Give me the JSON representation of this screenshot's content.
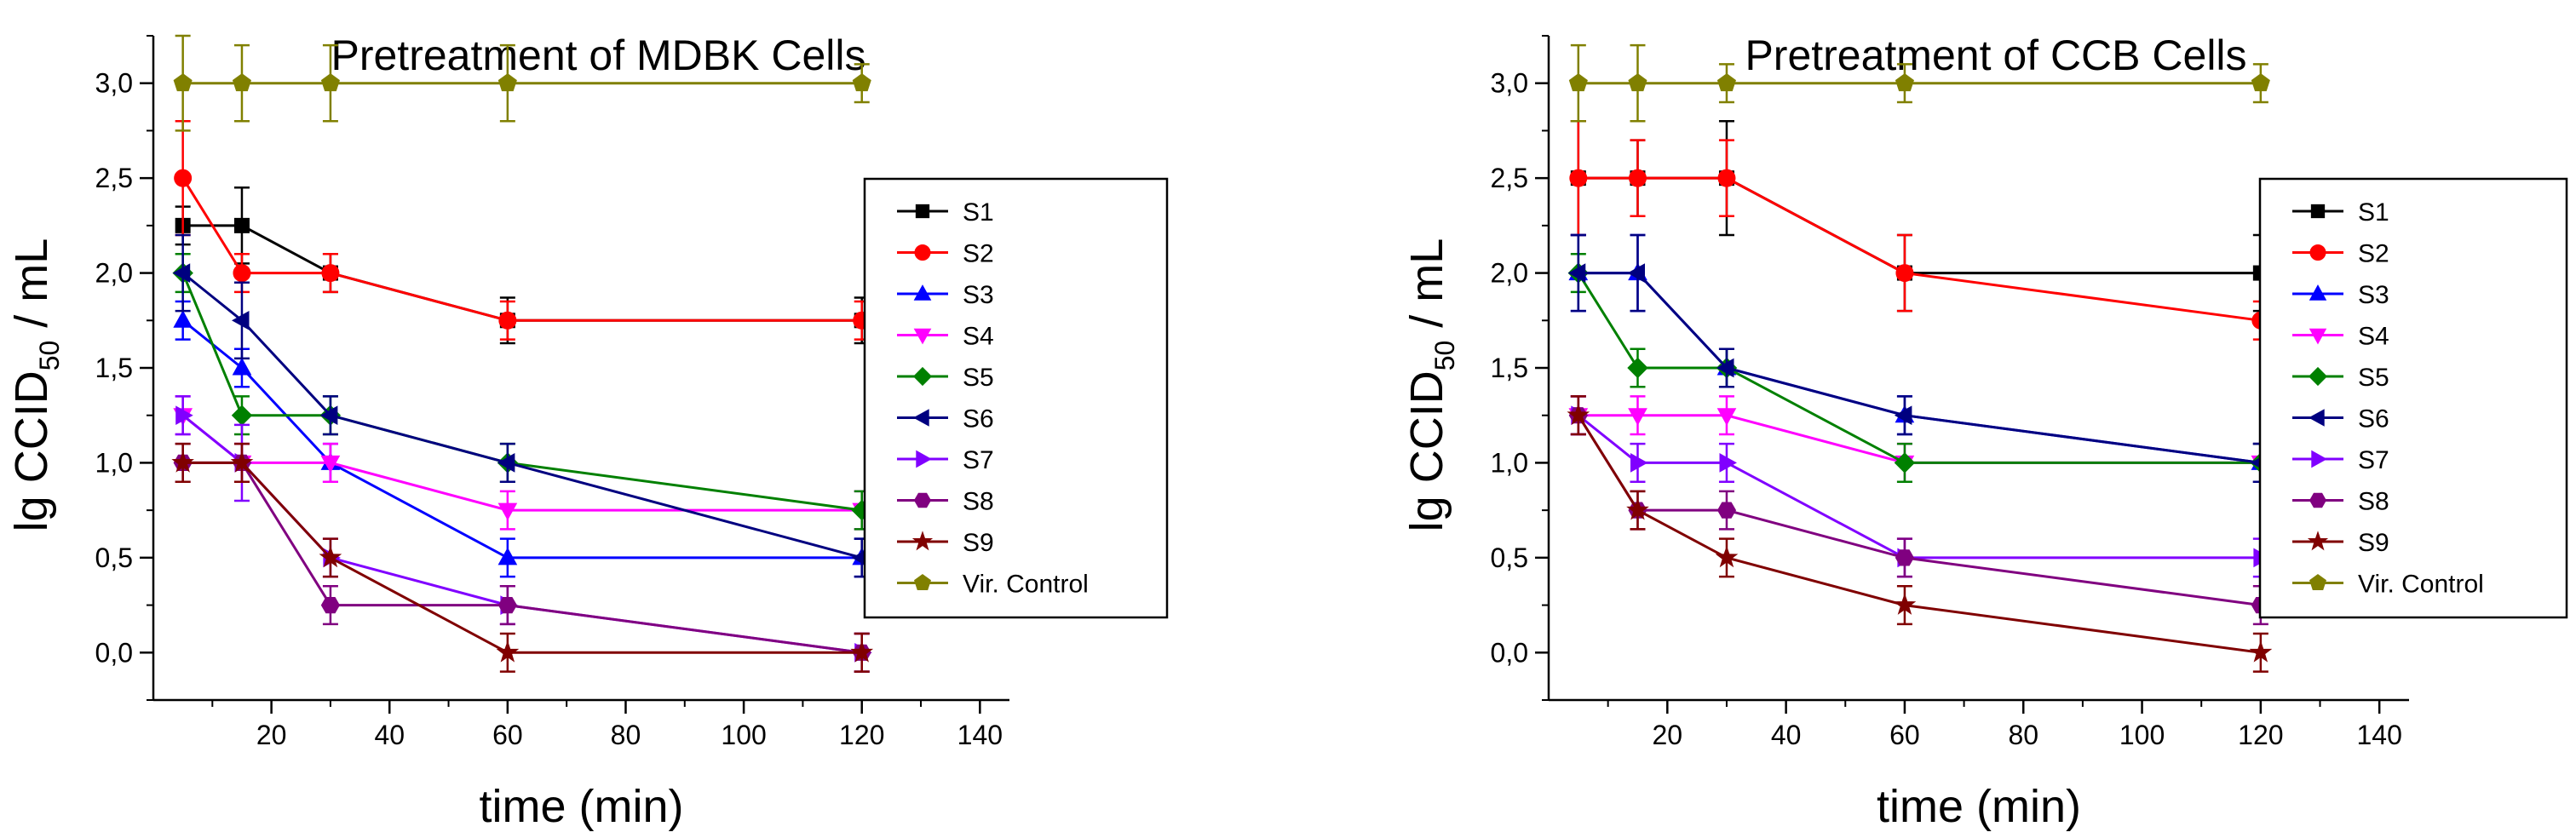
{
  "chart_data": [
    {
      "type": "line",
      "title": "Pretreatment of MDBK Cells",
      "xlabel": "time (min)",
      "ylabel_main": "lg CCID",
      "ylabel_sub": "50",
      "ylabel_tail": " / mL",
      "xlim": [
        0,
        145
      ],
      "ylim": [
        -0.25,
        3.25
      ],
      "xticks": [
        20,
        40,
        60,
        80,
        100,
        120,
        140
      ],
      "xtick_labels": [
        "20",
        "40",
        "60",
        "80",
        "100",
        "120",
        "140"
      ],
      "yticks": [
        0,
        0.5,
        1,
        1.5,
        2,
        2.5,
        3
      ],
      "ytick_labels": [
        "0,0",
        "0,5",
        "1,0",
        "1,5",
        "2,0",
        "2,5",
        "3,0"
      ],
      "grid": false,
      "legend_position": "right",
      "x": [
        5,
        15,
        30,
        60,
        120
      ],
      "series": [
        {
          "name": "S1",
          "color": "#000000",
          "marker": "square",
          "values": [
            2.25,
            2.25,
            2.0,
            1.75,
            1.75
          ],
          "errors": [
            0.1,
            0.2,
            0.1,
            0.12,
            0.12
          ]
        },
        {
          "name": "S2",
          "color": "#ff0000",
          "marker": "circle",
          "values": [
            2.5,
            2.0,
            2.0,
            1.75,
            1.75
          ],
          "errors": [
            0.3,
            0.1,
            0.1,
            0.1,
            0.1
          ]
        },
        {
          "name": "S3",
          "color": "#0000ff",
          "marker": "triangle-up",
          "values": [
            1.75,
            1.5,
            1.0,
            0.5,
            0.5
          ],
          "errors": [
            0.1,
            0.1,
            0.1,
            0.1,
            0.1
          ]
        },
        {
          "name": "S4",
          "color": "#ff00ff",
          "marker": "triangle-down",
          "values": [
            1.25,
            1.0,
            1.0,
            0.75,
            0.75
          ],
          "errors": [
            0.1,
            0.1,
            0.1,
            0.1,
            0.1
          ]
        },
        {
          "name": "S5",
          "color": "#008000",
          "marker": "diamond",
          "values": [
            2.0,
            1.25,
            1.25,
            1.0,
            0.75
          ],
          "errors": [
            0.1,
            0.1,
            0.1,
            0.1,
            0.1
          ]
        },
        {
          "name": "S6",
          "color": "#000080",
          "marker": "triangle-left",
          "values": [
            2.0,
            1.75,
            1.25,
            1.0,
            0.5
          ],
          "errors": [
            0.2,
            0.2,
            0.1,
            0.1,
            0.1
          ]
        },
        {
          "name": "S7",
          "color": "#8000ff",
          "marker": "triangle-right",
          "values": [
            1.25,
            1.0,
            0.5,
            0.25,
            0.0
          ],
          "errors": [
            0.1,
            0.2,
            0.1,
            0.1,
            0.1
          ]
        },
        {
          "name": "S8",
          "color": "#800080",
          "marker": "hexagon",
          "values": [
            1.0,
            1.0,
            0.25,
            0.25,
            0.0
          ],
          "errors": [
            0.1,
            0.1,
            0.1,
            0.1,
            0.1
          ]
        },
        {
          "name": "S9",
          "color": "#800000",
          "marker": "star",
          "values": [
            1.0,
            1.0,
            0.5,
            0.0,
            0.0
          ],
          "errors": [
            0.1,
            0.1,
            0.1,
            0.1,
            0.1
          ]
        },
        {
          "name": "Vir. Control",
          "color": "#808000",
          "marker": "pentagon",
          "values": [
            3.0,
            3.0,
            3.0,
            3.0,
            3.0
          ],
          "errors": [
            0.25,
            0.2,
            0.2,
            0.2,
            0.1
          ]
        }
      ]
    },
    {
      "type": "line",
      "title": "Pretreatment of CCB Cells",
      "xlabel": "time (min)",
      "ylabel_main": "lg CCID",
      "ylabel_sub": "50",
      "ylabel_tail": " / mL",
      "xlim": [
        0,
        145
      ],
      "ylim": [
        -0.25,
        3.25
      ],
      "xticks": [
        20,
        40,
        60,
        80,
        100,
        120,
        140
      ],
      "xtick_labels": [
        "20",
        "40",
        "60",
        "80",
        "100",
        "120",
        "140"
      ],
      "yticks": [
        0,
        0.5,
        1,
        1.5,
        2,
        2.5,
        3
      ],
      "ytick_labels": [
        "0,0",
        "0,5",
        "1,0",
        "1,5",
        "2,0",
        "2,5",
        "3,0"
      ],
      "grid": false,
      "legend_position": "right",
      "x": [
        5,
        15,
        30,
        60,
        120
      ],
      "series": [
        {
          "name": "S1",
          "color": "#000000",
          "marker": "square",
          "values": [
            2.5,
            2.5,
            2.5,
            2.0,
            2.0
          ],
          "errors": [
            0.3,
            0.2,
            0.3,
            0.2,
            0.2
          ]
        },
        {
          "name": "S2",
          "color": "#ff0000",
          "marker": "circle",
          "values": [
            2.5,
            2.5,
            2.5,
            2.0,
            1.75
          ],
          "errors": [
            0.3,
            0.2,
            0.2,
            0.2,
            0.1
          ]
        },
        {
          "name": "S3",
          "color": "#0000ff",
          "marker": "triangle-up",
          "values": [
            2.0,
            2.0,
            1.5,
            1.25,
            1.0
          ],
          "errors": [
            0.2,
            0.2,
            0.1,
            0.1,
            0.1
          ]
        },
        {
          "name": "S4",
          "color": "#ff00ff",
          "marker": "triangle-down",
          "values": [
            1.25,
            1.25,
            1.25,
            1.0,
            1.0
          ],
          "errors": [
            0.1,
            0.1,
            0.1,
            0.1,
            0.1
          ]
        },
        {
          "name": "S5",
          "color": "#008000",
          "marker": "diamond",
          "values": [
            2.0,
            1.5,
            1.5,
            1.0,
            1.0
          ],
          "errors": [
            0.1,
            0.1,
            0.1,
            0.1,
            0.1
          ]
        },
        {
          "name": "S6",
          "color": "#000080",
          "marker": "triangle-left",
          "values": [
            2.0,
            2.0,
            1.5,
            1.25,
            1.0
          ],
          "errors": [
            0.2,
            0.2,
            0.1,
            0.1,
            0.1
          ]
        },
        {
          "name": "S7",
          "color": "#8000ff",
          "marker": "triangle-right",
          "values": [
            1.25,
            1.0,
            1.0,
            0.5,
            0.5
          ],
          "errors": [
            0.1,
            0.1,
            0.1,
            0.1,
            0.1
          ]
        },
        {
          "name": "S8",
          "color": "#800080",
          "marker": "hexagon",
          "values": [
            1.25,
            0.75,
            0.75,
            0.5,
            0.25
          ],
          "errors": [
            0.1,
            0.1,
            0.1,
            0.1,
            0.1
          ]
        },
        {
          "name": "S9",
          "color": "#800000",
          "marker": "star",
          "values": [
            1.25,
            0.75,
            0.5,
            0.25,
            0.0
          ],
          "errors": [
            0.1,
            0.1,
            0.1,
            0.1,
            0.1
          ]
        },
        {
          "name": "Vir. Control",
          "color": "#808000",
          "marker": "pentagon",
          "values": [
            3.0,
            3.0,
            3.0,
            3.0,
            3.0
          ],
          "errors": [
            0.2,
            0.2,
            0.1,
            0.1,
            0.1
          ]
        }
      ]
    }
  ]
}
